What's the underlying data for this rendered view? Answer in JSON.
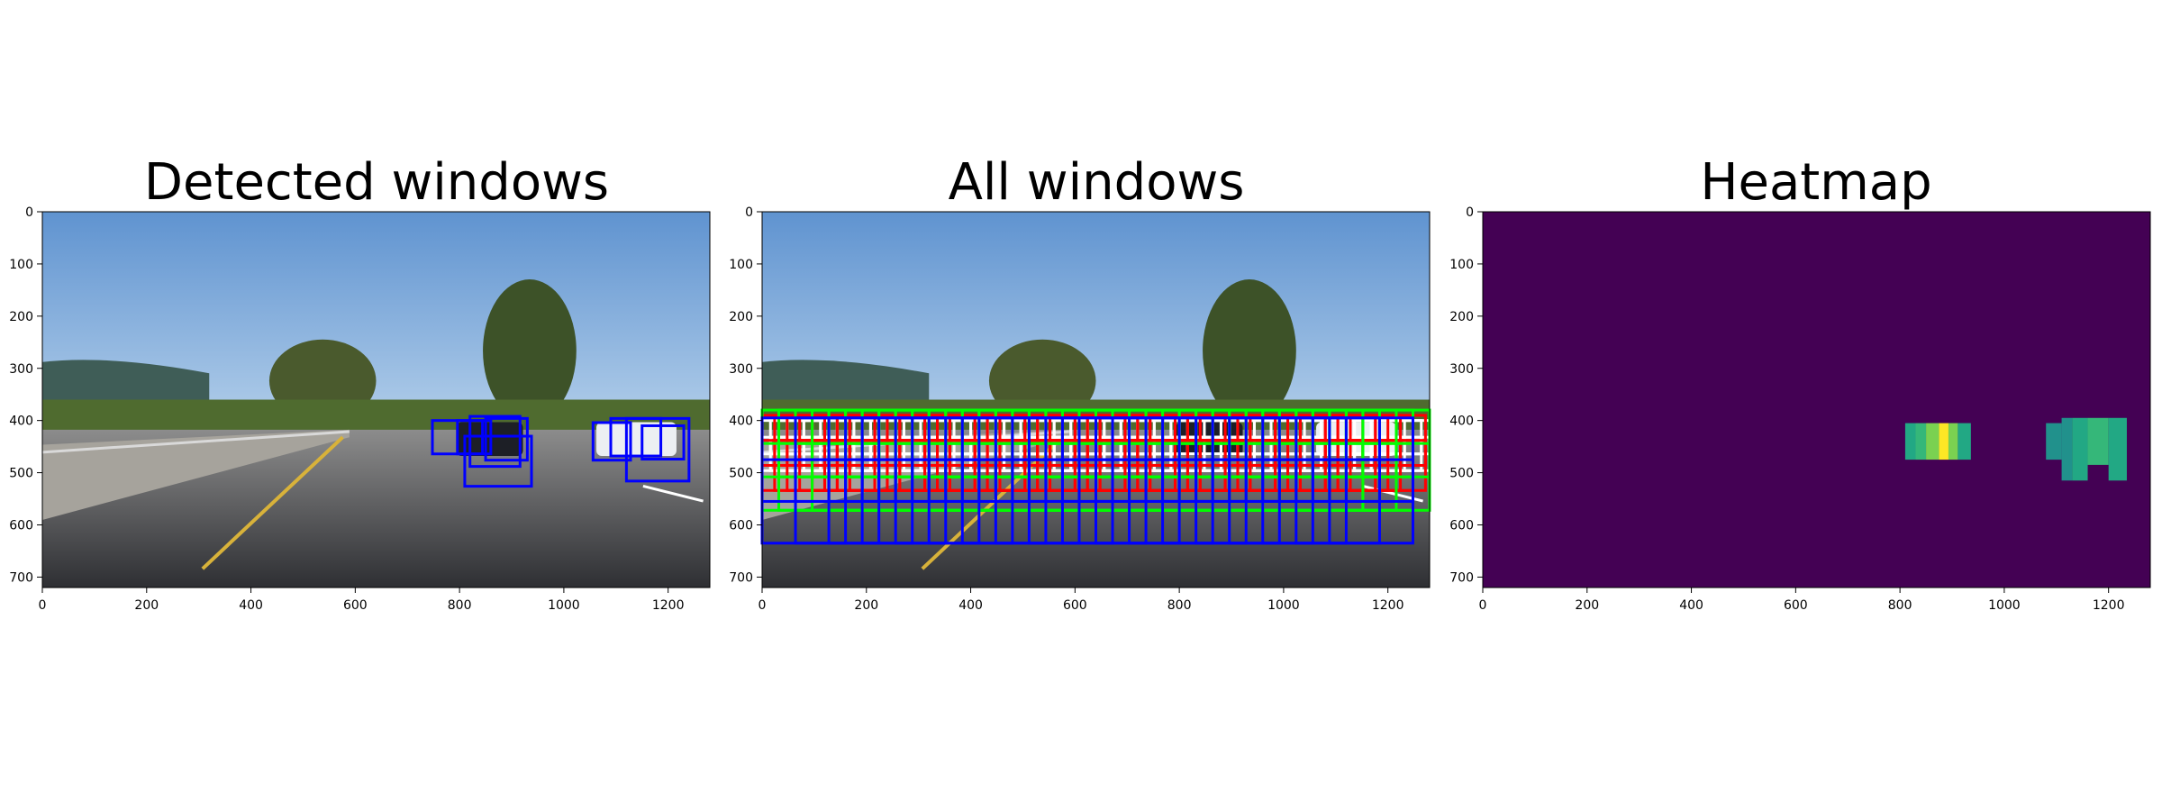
{
  "panels": [
    {
      "title": "Detected windows",
      "x_ticks": [
        "0",
        "200",
        "400",
        "600",
        "800",
        "1000",
        "1200"
      ],
      "y_ticks": [
        "0",
        "100",
        "200",
        "300",
        "400",
        "500",
        "600",
        "700"
      ],
      "xlim": [
        0,
        1280
      ],
      "ylim": [
        720,
        0
      ],
      "detections": [
        {
          "x": 748,
          "y": 400,
          "w": 96,
          "h": 64,
          "color": "#0000ff"
        },
        {
          "x": 796,
          "y": 400,
          "w": 64,
          "h": 64,
          "color": "#0000ff"
        },
        {
          "x": 820,
          "y": 392,
          "w": 96,
          "h": 96,
          "color": "#0000ff"
        },
        {
          "x": 850,
          "y": 396,
          "w": 80,
          "h": 80,
          "color": "#0000ff"
        },
        {
          "x": 810,
          "y": 430,
          "w": 128,
          "h": 96,
          "color": "#0000ff"
        },
        {
          "x": 1056,
          "y": 404,
          "w": 72,
          "h": 72,
          "color": "#0000ff"
        },
        {
          "x": 1090,
          "y": 396,
          "w": 96,
          "h": 72,
          "color": "#0000ff"
        },
        {
          "x": 1120,
          "y": 396,
          "w": 120,
          "h": 120,
          "color": "#0000ff"
        },
        {
          "x": 1150,
          "y": 410,
          "w": 80,
          "h": 64,
          "color": "#0000ff"
        }
      ]
    },
    {
      "title": "All windows",
      "x_ticks": [
        "0",
        "200",
        "400",
        "600",
        "800",
        "1000",
        "1200"
      ],
      "y_ticks": [
        "0",
        "100",
        "200",
        "300",
        "400",
        "500",
        "600",
        "700"
      ],
      "xlim": [
        0,
        1280
      ],
      "ylim": [
        720,
        0
      ],
      "window_sets": [
        {
          "size": 64,
          "y_start": 400,
          "rows": 2,
          "step": 16,
          "color": "#ffffff"
        },
        {
          "size": 96,
          "y_start": 390,
          "rows": 2,
          "step": 24,
          "color": "#ff0000"
        },
        {
          "size": 128,
          "y_start": 380,
          "rows": 2,
          "step": 32,
          "color": "#00ff00"
        },
        {
          "size": 160,
          "y_start": 395,
          "rows": 2,
          "step": 64,
          "color": "#0000ff"
        }
      ]
    },
    {
      "title": "Heatmap",
      "x_ticks": [
        "0",
        "200",
        "400",
        "600",
        "800",
        "1000",
        "1200"
      ],
      "y_ticks": [
        "0",
        "100",
        "200",
        "300",
        "400",
        "500",
        "600",
        "700"
      ],
      "xlim": [
        0,
        1280
      ],
      "ylim": [
        720,
        0
      ],
      "background": "#440154",
      "hot_spots": [
        {
          "x": 810,
          "y": 405,
          "w": 20,
          "h": 70,
          "color": "#22a884"
        },
        {
          "x": 830,
          "y": 405,
          "w": 20,
          "h": 70,
          "color": "#35b779"
        },
        {
          "x": 850,
          "y": 405,
          "w": 25,
          "h": 70,
          "color": "#7ad151"
        },
        {
          "x": 875,
          "y": 405,
          "w": 18,
          "h": 70,
          "color": "#fde725"
        },
        {
          "x": 893,
          "y": 405,
          "w": 18,
          "h": 70,
          "color": "#7ad151"
        },
        {
          "x": 911,
          "y": 405,
          "w": 25,
          "h": 70,
          "color": "#22a884"
        },
        {
          "x": 1080,
          "y": 405,
          "w": 30,
          "h": 70,
          "color": "#21918c"
        },
        {
          "x": 1110,
          "y": 395,
          "w": 20,
          "h": 120,
          "color": "#21918c"
        },
        {
          "x": 1130,
          "y": 395,
          "w": 30,
          "h": 120,
          "color": "#22a884"
        },
        {
          "x": 1160,
          "y": 395,
          "w": 40,
          "h": 90,
          "color": "#35b779"
        },
        {
          "x": 1200,
          "y": 395,
          "w": 35,
          "h": 120,
          "color": "#22a884"
        }
      ]
    }
  ]
}
